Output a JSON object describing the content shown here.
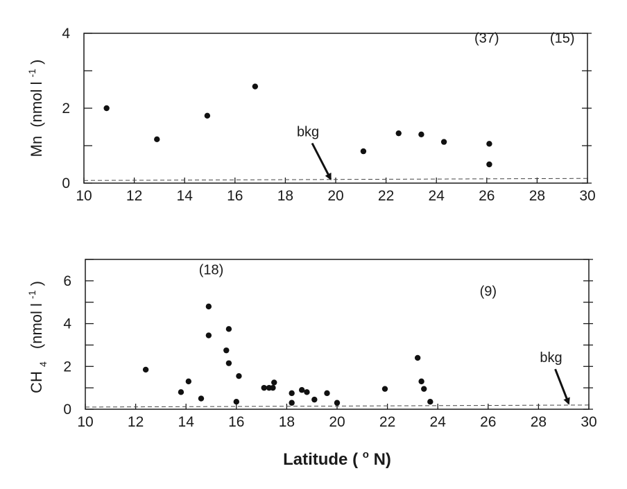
{
  "chart_data": [
    {
      "id": "mn",
      "type": "scatter",
      "ylabel_main": "Mn",
      "ylabel_unit": "(nmol l",
      "ylabel_sup": "-1",
      "ylabel_close": ")",
      "xlim": [
        10,
        30
      ],
      "ylim": [
        0,
        4
      ],
      "xticks": [
        10,
        12,
        14,
        16,
        18,
        20,
        22,
        24,
        26,
        28,
        30
      ],
      "yticks": [
        0,
        2,
        4
      ],
      "background_level": 0.07,
      "points": [
        {
          "x": 10.9,
          "y": 2.0
        },
        {
          "x": 12.9,
          "y": 1.17
        },
        {
          "x": 14.9,
          "y": 1.8
        },
        {
          "x": 16.8,
          "y": 2.58
        },
        {
          "x": 21.1,
          "y": 0.85
        },
        {
          "x": 22.5,
          "y": 1.33
        },
        {
          "x": 23.4,
          "y": 1.3
        },
        {
          "x": 24.3,
          "y": 1.1
        },
        {
          "x": 26.1,
          "y": 1.05
        },
        {
          "x": 26.1,
          "y": 0.5
        }
      ],
      "annotations": [
        {
          "text": "(37)",
          "x": 26.0,
          "y": 3.75
        },
        {
          "text": "(15)",
          "x": 29.0,
          "y": 3.75
        }
      ],
      "bkg": {
        "label": "bkg",
        "label_x": 18.9,
        "label_y": 1.25,
        "arrow_to_x": 19.8,
        "arrow_to_y": 0.07
      }
    },
    {
      "id": "ch4",
      "type": "scatter",
      "ylabel_main": "CH",
      "ylabel_sub": "4",
      "ylabel_unit": "(nmol l",
      "ylabel_sup": "-1",
      "ylabel_close": ")",
      "xlabel_main": "Latitude (",
      "xlabel_sup": "o",
      "xlabel_close": "N)",
      "xlim": [
        10,
        30
      ],
      "ylim": [
        0,
        7
      ],
      "xticks": [
        10,
        12,
        14,
        16,
        18,
        20,
        22,
        24,
        26,
        28,
        30
      ],
      "yticks": [
        0,
        2,
        4,
        6
      ],
      "background_level": 0.1,
      "points": [
        {
          "x": 12.4,
          "y": 1.85
        },
        {
          "x": 13.8,
          "y": 0.8
        },
        {
          "x": 14.1,
          "y": 1.3
        },
        {
          "x": 14.6,
          "y": 0.5
        },
        {
          "x": 14.9,
          "y": 4.8
        },
        {
          "x": 14.9,
          "y": 3.45
        },
        {
          "x": 15.6,
          "y": 2.75
        },
        {
          "x": 15.7,
          "y": 3.75
        },
        {
          "x": 15.7,
          "y": 2.15
        },
        {
          "x": 16.0,
          "y": 0.35
        },
        {
          "x": 16.1,
          "y": 1.55
        },
        {
          "x": 17.1,
          "y": 1.0
        },
        {
          "x": 17.3,
          "y": 1.0
        },
        {
          "x": 17.45,
          "y": 1.0
        },
        {
          "x": 17.5,
          "y": 1.25
        },
        {
          "x": 18.2,
          "y": 0.75
        },
        {
          "x": 18.2,
          "y": 0.3
        },
        {
          "x": 18.6,
          "y": 0.9
        },
        {
          "x": 18.8,
          "y": 0.8
        },
        {
          "x": 19.1,
          "y": 0.45
        },
        {
          "x": 19.6,
          "y": 0.75
        },
        {
          "x": 20.0,
          "y": 0.3
        },
        {
          "x": 21.9,
          "y": 0.95
        },
        {
          "x": 23.2,
          "y": 2.4
        },
        {
          "x": 23.35,
          "y": 1.3
        },
        {
          "x": 23.45,
          "y": 0.95
        },
        {
          "x": 23.7,
          "y": 0.35
        }
      ],
      "annotations": [
        {
          "text": "(18)",
          "x": 15.0,
          "y": 6.3
        },
        {
          "text": "(9)",
          "x": 26.0,
          "y": 5.3
        }
      ],
      "bkg": {
        "label": "bkg",
        "label_x": 28.5,
        "label_y": 2.2,
        "arrow_to_x": 29.2,
        "arrow_to_y": 0.2
      }
    }
  ]
}
